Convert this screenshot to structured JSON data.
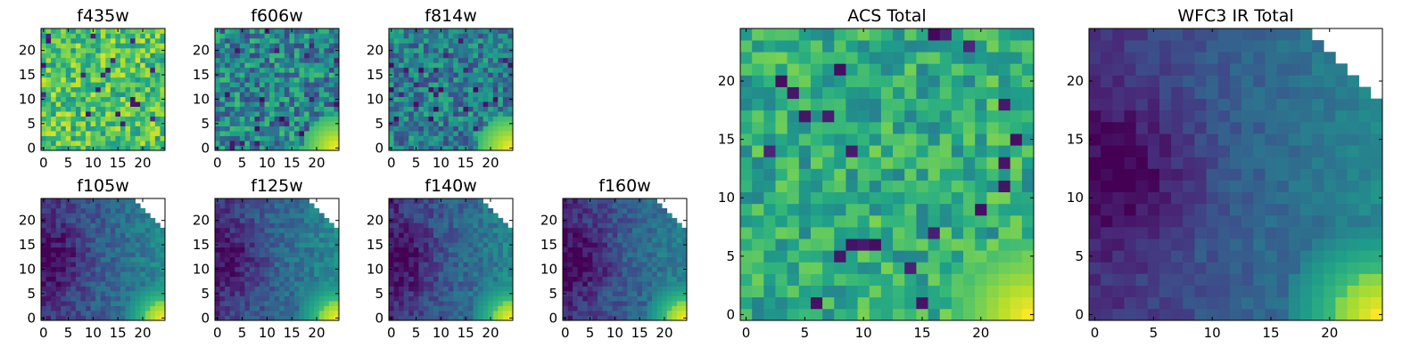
{
  "figure": {
    "type": "heatmap-grid",
    "colormap": [
      "#440154",
      "#482878",
      "#3e4a89",
      "#31688e",
      "#26828e",
      "#1f9e89",
      "#35b779",
      "#6ece58",
      "#b5de2b",
      "#fde725"
    ]
  },
  "chart_data": [
    {
      "id": "f435w",
      "type": "heatmap",
      "title": "f435w",
      "grid_size": 25,
      "xlim": [
        0,
        24
      ],
      "ylim": [
        0,
        24
      ],
      "xticks": [
        "0",
        "5",
        "10",
        "15",
        "20"
      ],
      "yticks": [
        "0",
        "5",
        "10",
        "15",
        "20"
      ],
      "pattern": "uniform-noise",
      "mean_level": 0.72,
      "noise": 0.22,
      "masked_corner": false,
      "grid": false
    },
    {
      "id": "f606w",
      "type": "heatmap",
      "title": "f606w",
      "grid_size": 25,
      "xlim": [
        0,
        24
      ],
      "ylim": [
        0,
        24
      ],
      "xticks": [
        "0",
        "5",
        "10",
        "15",
        "20"
      ],
      "yticks": [
        "0",
        "5",
        "10",
        "15",
        "20"
      ],
      "pattern": "noise-with-bright-lower-right-corner",
      "mean_level": 0.45,
      "noise": 0.25,
      "masked_corner": false,
      "grid": false
    },
    {
      "id": "f814w",
      "type": "heatmap",
      "title": "f814w",
      "grid_size": 25,
      "xlim": [
        0,
        24
      ],
      "ylim": [
        0,
        24
      ],
      "xticks": [
        "0",
        "5",
        "10",
        "15",
        "20"
      ],
      "yticks": [
        "0",
        "5",
        "10",
        "15",
        "20"
      ],
      "pattern": "noise-with-bright-lower-right-corner",
      "mean_level": 0.42,
      "noise": 0.22,
      "masked_corner": false,
      "grid": false
    },
    {
      "id": "f105w",
      "type": "heatmap",
      "title": "f105w",
      "grid_size": 25,
      "xlim": [
        0,
        24
      ],
      "ylim": [
        0,
        24
      ],
      "xticks": [
        "0",
        "5",
        "10",
        "15",
        "20"
      ],
      "yticks": [
        "0",
        "5",
        "10",
        "15",
        "20"
      ],
      "pattern": "gradient-dark-left-bright-lower-right",
      "mean_level": 0.3,
      "noise": 0.1,
      "masked_corner": true,
      "grid": false
    },
    {
      "id": "f125w",
      "type": "heatmap",
      "title": "f125w",
      "grid_size": 25,
      "xlim": [
        0,
        24
      ],
      "ylim": [
        0,
        24
      ],
      "xticks": [
        "0",
        "5",
        "10",
        "15",
        "20"
      ],
      "yticks": [
        "0",
        "5",
        "10",
        "15",
        "20"
      ],
      "pattern": "gradient-dark-left-bright-lower-right",
      "mean_level": 0.33,
      "noise": 0.1,
      "masked_corner": true,
      "grid": false
    },
    {
      "id": "f140w",
      "type": "heatmap",
      "title": "f140w",
      "grid_size": 25,
      "xlim": [
        0,
        24
      ],
      "ylim": [
        0,
        24
      ],
      "xticks": [
        "0",
        "5",
        "10",
        "15",
        "20"
      ],
      "yticks": [
        "0",
        "5",
        "10",
        "15",
        "20"
      ],
      "pattern": "gradient-dark-left-bright-lower-right",
      "mean_level": 0.28,
      "noise": 0.1,
      "masked_corner": true,
      "grid": false
    },
    {
      "id": "f160w",
      "type": "heatmap",
      "title": "f160w",
      "grid_size": 25,
      "xlim": [
        0,
        24
      ],
      "ylim": [
        0,
        24
      ],
      "xticks": [
        "0",
        "5",
        "10",
        "15",
        "20"
      ],
      "yticks": [
        "0",
        "5",
        "10",
        "15",
        "20"
      ],
      "pattern": "gradient-dark-left-bright-lower-right",
      "mean_level": 0.25,
      "noise": 0.1,
      "masked_corner": true,
      "grid": false
    },
    {
      "id": "acs_total",
      "type": "heatmap",
      "title": "ACS Total",
      "grid_size": 25,
      "xlim": [
        0,
        24
      ],
      "ylim": [
        0,
        24
      ],
      "xticks": [
        "0",
        "5",
        "10",
        "15",
        "20"
      ],
      "yticks": [
        "0",
        "5",
        "10",
        "15",
        "20"
      ],
      "pattern": "noise-with-bright-lower-right-corner",
      "mean_level": 0.62,
      "noise": 0.18,
      "masked_corner": false,
      "grid": false
    },
    {
      "id": "wfc3_ir_total",
      "type": "heatmap",
      "title": "WFC3 IR Total",
      "grid_size": 25,
      "xlim": [
        0,
        24
      ],
      "ylim": [
        0,
        24
      ],
      "xticks": [
        "0",
        "5",
        "10",
        "15",
        "20"
      ],
      "yticks": [
        "0",
        "5",
        "10",
        "15",
        "20"
      ],
      "pattern": "gradient-dark-left-bright-lower-right",
      "mean_level": 0.28,
      "noise": 0.06,
      "masked_corner": true,
      "grid": false
    }
  ]
}
